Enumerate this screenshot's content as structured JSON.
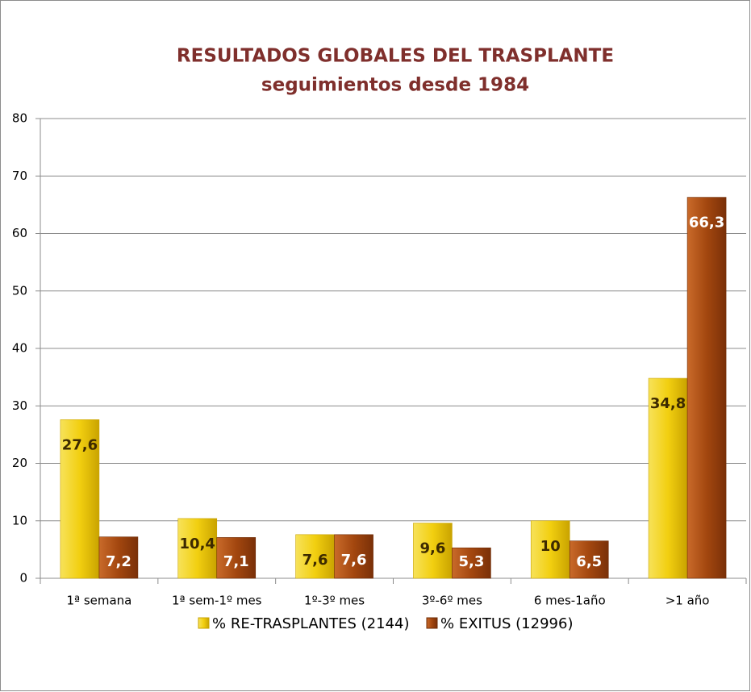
{
  "chart_data": {
    "type": "bar",
    "title": "RESULTADOS GLOBALES DEL TRASPLANTE",
    "subtitle": "seguimientos desde 1984",
    "categories": [
      "1ª semana",
      "1ª sem-1º mes",
      "1º-3º mes",
      "3º-6º mes",
      "6 mes-1año",
      ">1 año"
    ],
    "series": [
      {
        "name": "% RE-TRASPLANTES (2144)",
        "color": "#f2cf10",
        "values": [
          27.6,
          10.4,
          7.6,
          9.6,
          10,
          34.8
        ],
        "value_labels": [
          "27,6",
          "10,4",
          "7,6",
          "9,6",
          "10",
          "34,8"
        ]
      },
      {
        "name": "% EXITUS (12996)",
        "color": "#a3470f",
        "values": [
          7.2,
          7.1,
          7.6,
          5.3,
          6.5,
          66.3
        ],
        "value_labels": [
          "7,2",
          "7,1",
          "7,6",
          "5,3",
          "6,5",
          "66,3"
        ]
      }
    ],
    "ylim": [
      0,
      80
    ],
    "yticks": [
      0,
      10,
      20,
      30,
      40,
      50,
      60,
      70,
      80
    ],
    "grid": true,
    "legend": "bottom"
  }
}
